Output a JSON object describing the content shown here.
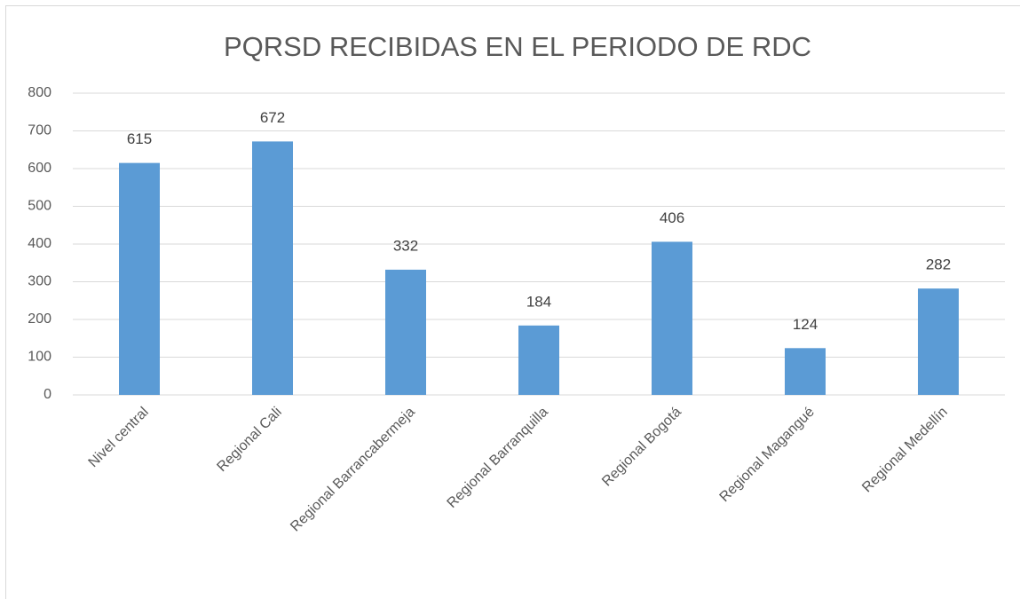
{
  "chart_data": {
    "type": "bar",
    "title": "PQRSD RECIBIDAS EN EL PERIODO DE RDC",
    "categories": [
      "Nivel central",
      "Regional Cali",
      "Regional Barrancabermeja",
      "Regional Barranquilla",
      "Regional Bogotá",
      "Regional Magangué",
      "Regional Medellín"
    ],
    "values": [
      615,
      672,
      332,
      184,
      406,
      124,
      282
    ],
    "color": "#5b9bd5",
    "ylim": [
      0,
      800
    ],
    "yticks": [
      0,
      100,
      200,
      300,
      400,
      500,
      600,
      700,
      800
    ],
    "grid": true
  }
}
